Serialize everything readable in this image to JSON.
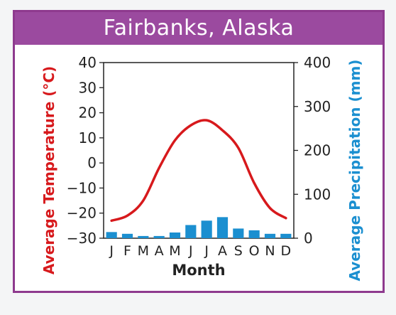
{
  "chart_data": {
    "type": "bar+line",
    "title": "Fairbanks, Alaska",
    "categories": [
      "J",
      "F",
      "M",
      "A",
      "M",
      "J",
      "J",
      "A",
      "S",
      "O",
      "N",
      "D"
    ],
    "xlabel": "Month",
    "ylabel_left": "Average Temperature (°C)",
    "ylabel_right": "Average Precipitation (mm)",
    "ylim_left": [
      -30,
      40
    ],
    "ylim_right": [
      0,
      400
    ],
    "yticks_left": [
      40,
      30,
      20,
      10,
      0,
      -10,
      -20,
      -30
    ],
    "yticks_right": [
      400,
      300,
      200,
      100,
      0
    ],
    "ytick_labels_left": [
      "40",
      "30",
      "20",
      "10",
      "0",
      "−10",
      "−20",
      "−30"
    ],
    "ytick_labels_right": [
      "400",
      "300",
      "200",
      "100",
      "0"
    ],
    "temperature": [
      -23,
      -21,
      -15,
      -2,
      9,
      15,
      17,
      13,
      6,
      -8,
      -18,
      -22
    ],
    "precipitation": [
      14,
      10,
      5,
      5,
      13,
      30,
      40,
      48,
      22,
      18,
      10,
      10
    ],
    "grid": false,
    "colors": {
      "temperature_line": "#d7191c",
      "precipitation_bars": "#1b8fd0",
      "title_bar": "#9b4a9f",
      "left_axis_label": "#d7191c",
      "right_axis_label": "#1b8fd0"
    }
  }
}
